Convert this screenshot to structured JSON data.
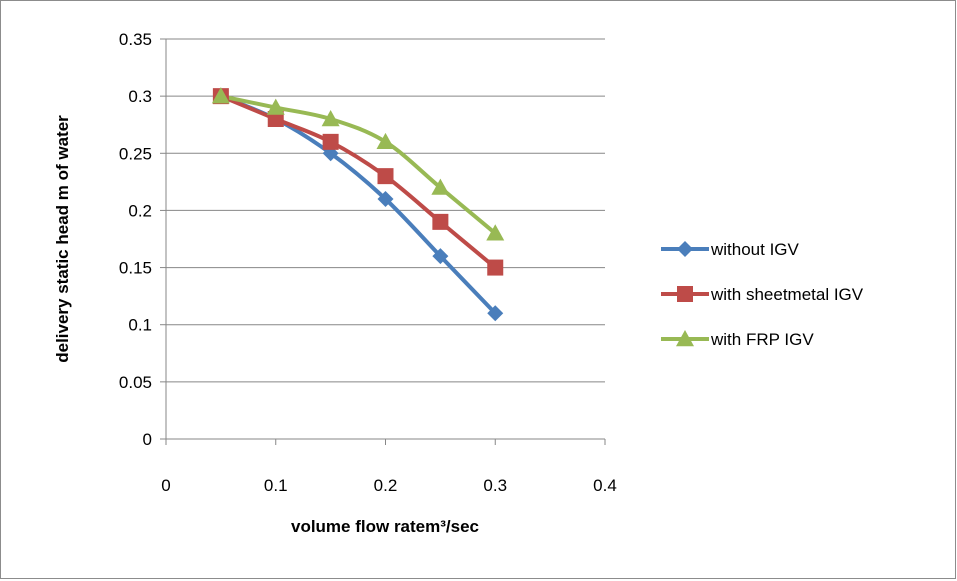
{
  "chart_data": {
    "type": "line",
    "title": "",
    "xlabel": "volume flow ratem³/sec",
    "ylabel": "delivery static head m of water",
    "xlim": [
      0,
      0.4
    ],
    "ylim": [
      0,
      0.35
    ],
    "xticks": [
      "0",
      "0.1",
      "0.2",
      "0.3",
      "0.4"
    ],
    "yticks": [
      "0",
      "0.05",
      "0.1",
      "0.15",
      "0.2",
      "0.25",
      "0.3",
      "0.35"
    ],
    "grid": "horizontal",
    "legend_position": "right",
    "smooth": true,
    "series": [
      {
        "name": "without IGV",
        "color": "#4a7ebb",
        "marker": "diamond",
        "x": [
          0.05,
          0.1,
          0.15,
          0.2,
          0.25,
          0.3
        ],
        "y": [
          0.3,
          0.28,
          0.25,
          0.21,
          0.16,
          0.11
        ]
      },
      {
        "name": "with sheetmetal IGV",
        "color": "#be4b48",
        "marker": "square",
        "x": [
          0.05,
          0.1,
          0.15,
          0.2,
          0.25,
          0.3
        ],
        "y": [
          0.3,
          0.28,
          0.26,
          0.23,
          0.19,
          0.15
        ]
      },
      {
        "name": "with FRP IGV",
        "color": "#98b954",
        "marker": "triangle",
        "x": [
          0.05,
          0.1,
          0.15,
          0.2,
          0.25,
          0.3
        ],
        "y": [
          0.3,
          0.29,
          0.28,
          0.26,
          0.22,
          0.18
        ]
      }
    ]
  }
}
